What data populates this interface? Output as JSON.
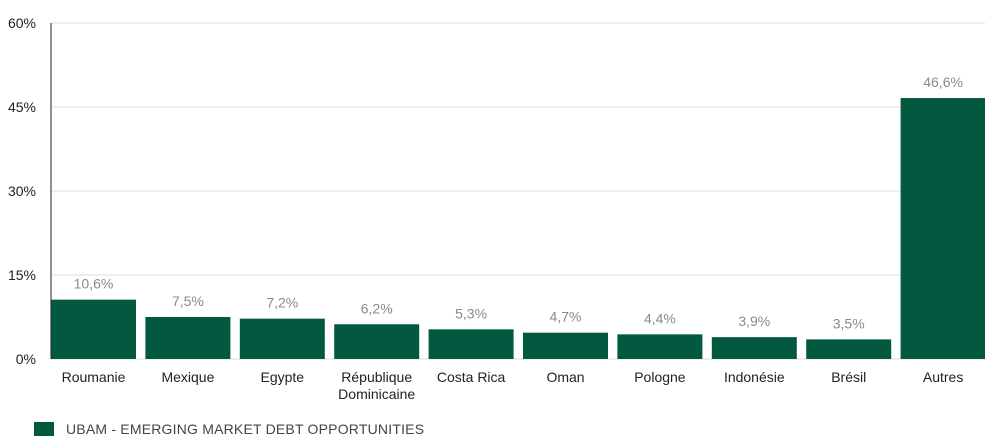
{
  "chart_data": {
    "type": "bar",
    "categories": [
      "Roumanie",
      "Mexique",
      "Egypte",
      "République Dominicaine",
      "Costa Rica",
      "Oman",
      "Pologne",
      "Indonésie",
      "Brésil",
      "Autres"
    ],
    "category_lines": [
      [
        "Roumanie"
      ],
      [
        "Mexique"
      ],
      [
        "Egypte"
      ],
      [
        "République",
        "Dominicaine"
      ],
      [
        "Costa Rica"
      ],
      [
        "Oman"
      ],
      [
        "Pologne"
      ],
      [
        "Indonésie"
      ],
      [
        "Brésil"
      ],
      [
        "Autres"
      ]
    ],
    "series": [
      {
        "name": "UBAM - EMERGING MARKET DEBT OPPORTUNITIES",
        "values": [
          10.6,
          7.5,
          7.2,
          6.2,
          5.3,
          4.7,
          4.4,
          3.9,
          3.5,
          46.6
        ]
      }
    ],
    "data_labels": [
      "10,6%",
      "7,5%",
      "7,2%",
      "6,2%",
      "5,3%",
      "4,7%",
      "4,4%",
      "3,9%",
      "3,5%",
      "46,6%"
    ],
    "yticks": [
      0,
      15,
      30,
      45,
      60
    ],
    "ytick_labels": [
      "0%",
      "15%",
      "30%",
      "45%",
      "60%"
    ],
    "ylim": [
      0,
      60
    ],
    "grid": true,
    "legend_position": "bottom-left",
    "bar_color": "#025940",
    "grid_color": "#dcdcdc"
  },
  "legend": {
    "label": "UBAM - EMERGING MARKET DEBT OPPORTUNITIES"
  }
}
